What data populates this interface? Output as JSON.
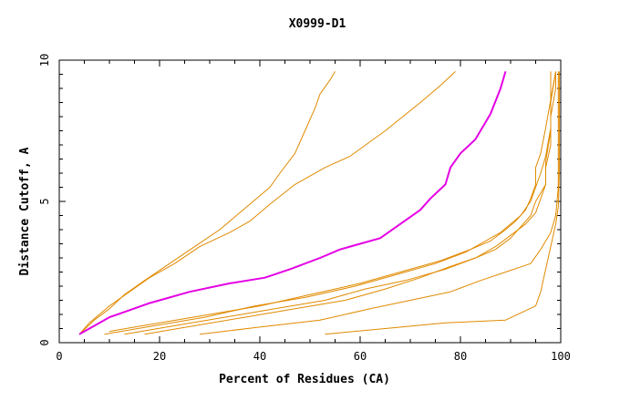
{
  "chart_data": {
    "type": "line",
    "title": "X0999-D1",
    "xlabel": "Percent of Residues (CA)",
    "ylabel": "Distance Cutoff, A",
    "xlim": [
      0,
      100
    ],
    "ylim": [
      0,
      10
    ],
    "x_ticks": [
      "0",
      "20",
      "40",
      "60",
      "80",
      "100"
    ],
    "y_ticks": [
      "0",
      "5",
      "10"
    ],
    "grid": false,
    "colors": {
      "highlight": "#e400e4",
      "other": "#e08a00",
      "axis": "#000000"
    },
    "series": [
      {
        "name": "curve-1",
        "highlight": false,
        "points": [
          [
            4,
            0.3
          ],
          [
            7,
            0.8
          ],
          [
            10,
            1.2
          ],
          [
            13,
            1.7
          ],
          [
            17,
            2.2
          ],
          [
            22,
            2.8
          ],
          [
            27,
            3.4
          ],
          [
            32,
            4.0
          ],
          [
            36,
            4.6
          ],
          [
            40,
            5.2
          ],
          [
            42,
            5.5
          ],
          [
            44,
            6.0
          ],
          [
            47,
            6.7
          ],
          [
            49,
            7.5
          ],
          [
            51,
            8.3
          ],
          [
            52,
            8.8
          ],
          [
            54,
            9.3
          ],
          [
            55,
            9.6
          ]
        ]
      },
      {
        "name": "curve-2",
        "highlight": false,
        "points": [
          [
            4,
            0.3
          ],
          [
            6,
            0.7
          ],
          [
            10,
            1.3
          ],
          [
            14,
            1.8
          ],
          [
            18,
            2.3
          ],
          [
            23,
            2.8
          ],
          [
            28,
            3.4
          ],
          [
            34,
            3.9
          ],
          [
            38,
            4.3
          ],
          [
            42,
            4.9
          ],
          [
            47,
            5.6
          ],
          [
            53,
            6.2
          ],
          [
            58,
            6.6
          ],
          [
            65,
            7.5
          ],
          [
            72,
            8.5
          ],
          [
            76,
            9.1
          ],
          [
            79,
            9.6
          ]
        ]
      },
      {
        "name": "curve-3-highlight",
        "highlight": true,
        "points": [
          [
            4,
            0.3
          ],
          [
            10,
            0.9
          ],
          [
            18,
            1.4
          ],
          [
            26,
            1.8
          ],
          [
            34,
            2.1
          ],
          [
            41,
            2.3
          ],
          [
            46,
            2.6
          ],
          [
            52,
            3.0
          ],
          [
            56,
            3.3
          ],
          [
            60,
            3.5
          ],
          [
            64,
            3.7
          ],
          [
            68,
            4.2
          ],
          [
            72,
            4.7
          ],
          [
            74,
            5.1
          ],
          [
            77,
            5.6
          ],
          [
            78,
            6.2
          ],
          [
            80,
            6.7
          ],
          [
            83,
            7.2
          ],
          [
            86,
            8.1
          ],
          [
            88,
            9.0
          ],
          [
            89,
            9.6
          ]
        ]
      },
      {
        "name": "curve-4",
        "highlight": false,
        "points": [
          [
            10,
            0.4
          ],
          [
            20,
            0.7
          ],
          [
            30,
            1.0
          ],
          [
            40,
            1.3
          ],
          [
            50,
            1.7
          ],
          [
            60,
            2.1
          ],
          [
            68,
            2.5
          ],
          [
            76,
            2.9
          ],
          [
            82,
            3.3
          ],
          [
            86,
            3.6
          ],
          [
            89,
            4.0
          ],
          [
            91,
            4.3
          ],
          [
            93,
            4.7
          ],
          [
            94,
            5.1
          ],
          [
            95,
            5.6
          ],
          [
            95,
            6.2
          ],
          [
            96,
            6.7
          ],
          [
            97,
            7.6
          ],
          [
            98,
            8.6
          ],
          [
            98,
            9.6
          ]
        ]
      },
      {
        "name": "curve-5",
        "highlight": false,
        "points": [
          [
            9,
            0.3
          ],
          [
            19,
            0.6
          ],
          [
            29,
            0.9
          ],
          [
            39,
            1.3
          ],
          [
            49,
            1.6
          ],
          [
            59,
            2.0
          ],
          [
            67,
            2.4
          ],
          [
            75,
            2.8
          ],
          [
            81,
            3.2
          ],
          [
            85,
            3.6
          ],
          [
            88,
            3.9
          ],
          [
            90,
            4.2
          ],
          [
            92,
            4.5
          ],
          [
            94,
            5.0
          ],
          [
            95,
            5.5
          ],
          [
            96,
            6.0
          ],
          [
            97,
            6.6
          ],
          [
            98,
            7.6
          ],
          [
            98,
            8.6
          ],
          [
            99,
            9.6
          ]
        ]
      },
      {
        "name": "curve-6",
        "highlight": false,
        "points": [
          [
            13,
            0.3
          ],
          [
            23,
            0.6
          ],
          [
            33,
            0.9
          ],
          [
            43,
            1.2
          ],
          [
            53,
            1.5
          ],
          [
            61,
            1.9
          ],
          [
            69,
            2.2
          ],
          [
            77,
            2.6
          ],
          [
            83,
            3.0
          ],
          [
            87,
            3.3
          ],
          [
            90,
            3.7
          ],
          [
            92,
            4.1
          ],
          [
            94,
            4.5
          ],
          [
            95,
            5.0
          ],
          [
            97,
            5.6
          ],
          [
            97,
            6.2
          ],
          [
            98,
            7.0
          ],
          [
            98,
            8.0
          ],
          [
            99,
            9.0
          ],
          [
            99,
            9.6
          ]
        ]
      },
      {
        "name": "curve-7",
        "highlight": false,
        "points": [
          [
            17,
            0.3
          ],
          [
            27,
            0.6
          ],
          [
            37,
            0.9
          ],
          [
            47,
            1.2
          ],
          [
            57,
            1.5
          ],
          [
            65,
            1.9
          ],
          [
            72,
            2.3
          ],
          [
            78,
            2.7
          ],
          [
            83,
            3.0
          ],
          [
            87,
            3.4
          ],
          [
            90,
            3.8
          ],
          [
            93,
            4.2
          ],
          [
            95,
            4.6
          ],
          [
            96,
            5.1
          ],
          [
            97,
            5.6
          ],
          [
            97,
            6.4
          ],
          [
            98,
            7.5
          ],
          [
            98,
            8.5
          ],
          [
            99,
            9.6
          ]
        ]
      },
      {
        "name": "curve-8",
        "highlight": false,
        "points": [
          [
            28,
            0.3
          ],
          [
            40,
            0.55
          ],
          [
            52,
            0.8
          ],
          [
            62,
            1.2
          ],
          [
            70,
            1.5
          ],
          [
            78,
            1.8
          ],
          [
            84,
            2.2
          ],
          [
            89,
            2.5
          ],
          [
            94,
            2.8
          ],
          [
            96,
            3.3
          ],
          [
            98,
            3.9
          ],
          [
            99,
            4.5
          ],
          [
            99.5,
            5.5
          ],
          [
            99.5,
            7.0
          ],
          [
            99.5,
            9.6
          ]
        ]
      },
      {
        "name": "curve-9",
        "highlight": false,
        "points": [
          [
            53,
            0.3
          ],
          [
            65,
            0.5
          ],
          [
            77,
            0.7
          ],
          [
            89,
            0.8
          ],
          [
            95,
            1.3
          ],
          [
            96,
            1.8
          ],
          [
            97,
            2.6
          ],
          [
            98,
            3.4
          ],
          [
            99,
            4.2
          ],
          [
            99.5,
            4.8
          ],
          [
            99.7,
            6.0
          ],
          [
            99.7,
            7.5
          ],
          [
            99.7,
            9.6
          ]
        ]
      }
    ]
  }
}
